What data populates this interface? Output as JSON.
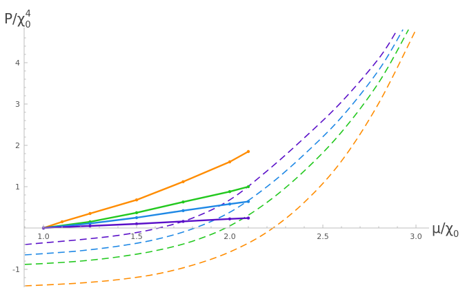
{
  "chart_data": {
    "type": "line",
    "title": "",
    "xlabel": {
      "prefix": "μ/χ",
      "sub": "0"
    },
    "ylabel": {
      "prefix": "P/χ",
      "sub": "0",
      "sup": "4"
    },
    "xlim": [
      0.9,
      3.05
    ],
    "ylim": [
      -1.5,
      4.8
    ],
    "x_ticks": [
      1.0,
      1.5,
      2.0,
      2.5,
      3.0
    ],
    "x_tick_labels": [
      "1.0",
      "1.5",
      "2.0",
      "2.5",
      "3.0"
    ],
    "y_ticks": [
      -1,
      1,
      2,
      3,
      4
    ],
    "y_tick_labels": [
      "-1",
      "1",
      "2",
      "3",
      "4"
    ],
    "grid": false,
    "legend": "none",
    "series": [
      {
        "color": "#ff8c00",
        "style": "solid",
        "markers": true,
        "x": [
          1.0,
          1.1,
          1.25,
          1.5,
          1.75,
          2.0,
          2.1
        ],
        "y": [
          0.0,
          0.15,
          0.35,
          0.68,
          1.12,
          1.6,
          1.85
        ]
      },
      {
        "color": "#22c81e",
        "style": "solid",
        "markers": true,
        "x": [
          1.0,
          1.25,
          1.5,
          1.75,
          2.0,
          2.1
        ],
        "y": [
          0.0,
          0.15,
          0.37,
          0.63,
          0.88,
          1.0
        ]
      },
      {
        "color": "#1e88e5",
        "style": "solid",
        "markers": true,
        "x": [
          1.0,
          1.25,
          1.5,
          1.75,
          2.0,
          2.1
        ],
        "y": [
          0.0,
          0.11,
          0.25,
          0.42,
          0.58,
          0.64
        ]
      },
      {
        "color": "#5a10c8",
        "style": "solid",
        "markers": true,
        "x": [
          1.0,
          1.25,
          1.5,
          1.75,
          2.0,
          2.1
        ],
        "y": [
          0.0,
          0.05,
          0.1,
          0.16,
          0.22,
          0.24
        ]
      },
      {
        "color": "#5a10c8",
        "style": "dashed",
        "markers": false,
        "x": [
          0.9,
          1.0,
          1.2,
          1.4,
          1.6,
          1.8,
          2.0,
          2.2,
          2.4,
          2.6,
          2.8,
          2.9
        ],
        "y": [
          -0.4,
          -0.36,
          -0.28,
          -0.18,
          -0.02,
          0.24,
          0.68,
          1.38,
          2.18,
          3.05,
          4.1,
          4.8
        ]
      },
      {
        "color": "#1e88e5",
        "style": "dashed",
        "markers": false,
        "x": [
          0.9,
          1.0,
          1.2,
          1.4,
          1.6,
          1.8,
          2.0,
          2.2,
          2.4,
          2.6,
          2.8,
          2.93
        ],
        "y": [
          -0.65,
          -0.62,
          -0.55,
          -0.44,
          -0.28,
          -0.02,
          0.38,
          1.0,
          1.78,
          2.68,
          3.82,
          4.8
        ]
      },
      {
        "color": "#22c81e",
        "style": "dashed",
        "markers": false,
        "x": [
          0.9,
          1.0,
          1.2,
          1.4,
          1.6,
          1.8,
          2.0,
          2.2,
          2.4,
          2.6,
          2.8,
          2.96
        ],
        "y": [
          -0.88,
          -0.86,
          -0.8,
          -0.7,
          -0.55,
          -0.32,
          0.05,
          0.62,
          1.38,
          2.32,
          3.52,
          4.8
        ]
      },
      {
        "color": "#ff8c00",
        "style": "dashed",
        "markers": false,
        "x": [
          0.9,
          1.0,
          1.2,
          1.4,
          1.6,
          1.8,
          2.0,
          2.2,
          2.4,
          2.6,
          2.8,
          3.0
        ],
        "y": [
          -1.4,
          -1.38,
          -1.33,
          -1.25,
          -1.12,
          -0.9,
          -0.58,
          -0.1,
          0.62,
          1.62,
          3.02,
          4.8
        ]
      }
    ]
  }
}
